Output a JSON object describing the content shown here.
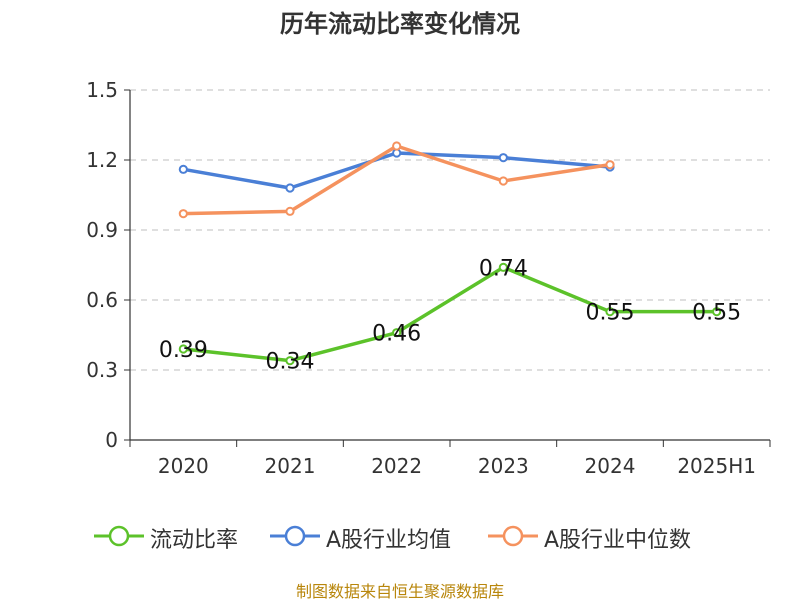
{
  "chart_data": {
    "type": "line",
    "title": "历年流动比率变化情况",
    "categories": [
      "2020",
      "2021",
      "2022",
      "2023",
      "2024",
      "2025H1"
    ],
    "y_ticks": [
      "0",
      "0.3",
      "0.6",
      "0.9",
      "1.2",
      "1.5"
    ],
    "ylim": [
      0,
      1.5
    ],
    "grid": true,
    "legend_position": "bottom",
    "series": [
      {
        "name": "流动比率",
        "color": "#5cc22a",
        "values": [
          0.39,
          0.34,
          0.46,
          0.74,
          0.55,
          0.55
        ],
        "data_labels": [
          "0.39",
          "0.34",
          "0.46",
          "0.74",
          "0.55",
          "0.55"
        ]
      },
      {
        "name": "A股行业均值",
        "color": "#4a7fd6",
        "values": [
          1.16,
          1.08,
          1.23,
          1.21,
          1.17,
          null
        ]
      },
      {
        "name": "A股行业中位数",
        "color": "#f5925e",
        "values": [
          0.97,
          0.98,
          1.26,
          1.11,
          1.18,
          null
        ]
      }
    ]
  },
  "source_note": "制图数据来自恒生聚源数据库"
}
